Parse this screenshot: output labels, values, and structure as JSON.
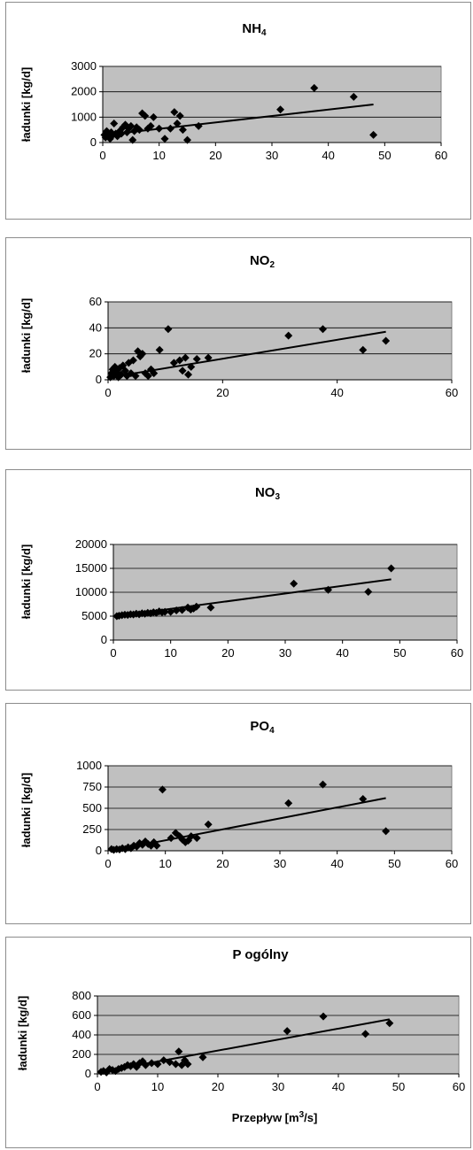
{
  "chart_data": [
    {
      "type": "scatter",
      "title_base": "NH",
      "title_sub": "4",
      "ylabel": "ładunki [kg/d]",
      "xlabel": "",
      "xlim": [
        0,
        60
      ],
      "ylim": [
        0,
        3000
      ],
      "x_ticks": [
        0,
        10,
        20,
        30,
        40,
        50,
        60
      ],
      "y_ticks": [
        0,
        1000,
        2000,
        3000
      ],
      "grid": true,
      "plot_color": "#c0c0c0",
      "marker_color": "#000000",
      "points": [
        [
          0.3,
          300
        ],
        [
          0.5,
          200
        ],
        [
          0.7,
          450
        ],
        [
          0.9,
          250
        ],
        [
          1.1,
          350
        ],
        [
          1.3,
          150
        ],
        [
          1.5,
          400
        ],
        [
          1.8,
          300
        ],
        [
          2,
          750
        ],
        [
          2.3,
          350
        ],
        [
          2.6,
          250
        ],
        [
          3,
          450
        ],
        [
          3.3,
          350
        ],
        [
          3.6,
          600
        ],
        [
          4,
          700
        ],
        [
          4.3,
          400
        ],
        [
          4.6,
          550
        ],
        [
          5,
          650
        ],
        [
          5.3,
          100
        ],
        [
          5.6,
          450
        ],
        [
          6,
          600
        ],
        [
          6.5,
          500
        ],
        [
          7,
          1150
        ],
        [
          7.5,
          1050
        ],
        [
          8,
          550
        ],
        [
          8.5,
          650
        ],
        [
          9,
          1000
        ],
        [
          10,
          550
        ],
        [
          11,
          150
        ],
        [
          12,
          550
        ],
        [
          12.7,
          1200
        ],
        [
          13.2,
          750
        ],
        [
          13.7,
          1050
        ],
        [
          14.2,
          500
        ],
        [
          15,
          100
        ],
        [
          17,
          650
        ],
        [
          31.5,
          1300
        ],
        [
          37.5,
          2150
        ],
        [
          44.5,
          1800
        ],
        [
          48,
          300
        ]
      ],
      "trendline": {
        "x": [
          0.5,
          48
        ],
        "y": [
          300,
          1500
        ]
      }
    },
    {
      "type": "scatter",
      "title_base": "NO",
      "title_sub": "2",
      "ylabel": "ładunki [kg/d]",
      "xlabel": "",
      "xlim": [
        0,
        60
      ],
      "ylim": [
        0,
        60
      ],
      "x_ticks": [
        0,
        20,
        40,
        60
      ],
      "y_ticks": [
        0,
        20,
        40,
        60
      ],
      "grid": true,
      "plot_color": "#c0c0c0",
      "marker_color": "#000000",
      "points": [
        [
          0.4,
          2
        ],
        [
          0.6,
          5
        ],
        [
          0.8,
          8
        ],
        [
          1,
          3
        ],
        [
          1.2,
          10
        ],
        [
          1.5,
          6
        ],
        [
          1.8,
          2
        ],
        [
          2,
          9
        ],
        [
          2.3,
          4
        ],
        [
          2.6,
          11
        ],
        [
          3,
          7
        ],
        [
          3.3,
          3
        ],
        [
          3.6,
          13
        ],
        [
          4,
          5
        ],
        [
          4.4,
          15
        ],
        [
          4.8,
          3
        ],
        [
          5.2,
          22
        ],
        [
          5.6,
          18
        ],
        [
          6,
          20
        ],
        [
          6.5,
          5
        ],
        [
          7,
          3
        ],
        [
          7.5,
          8
        ],
        [
          8,
          5
        ],
        [
          9,
          23
        ],
        [
          10.5,
          39
        ],
        [
          11.5,
          13
        ],
        [
          12.5,
          15
        ],
        [
          13,
          7
        ],
        [
          13.5,
          17
        ],
        [
          14,
          4
        ],
        [
          14.5,
          10
        ],
        [
          15.5,
          16
        ],
        [
          17.5,
          17
        ],
        [
          31.5,
          34
        ],
        [
          37.5,
          39
        ],
        [
          44.5,
          23
        ],
        [
          48.5,
          30
        ]
      ],
      "trendline": {
        "x": [
          0.5,
          48.5
        ],
        "y": [
          2,
          37
        ]
      }
    },
    {
      "type": "scatter",
      "title_base": "NO",
      "title_sub": "3",
      "ylabel": "ładunki [kg/d]",
      "xlabel": "",
      "xlim": [
        0,
        60
      ],
      "ylim": [
        0,
        20000
      ],
      "x_ticks": [
        0,
        10,
        20,
        30,
        40,
        50,
        60
      ],
      "y_ticks": [
        0,
        5000,
        10000,
        15000,
        20000
      ],
      "grid": true,
      "plot_color": "#c0c0c0",
      "marker_color": "#000000",
      "points": [
        [
          0.6,
          5000
        ],
        [
          1,
          5100
        ],
        [
          1.5,
          5200
        ],
        [
          2,
          5300
        ],
        [
          2.5,
          5250
        ],
        [
          3,
          5400
        ],
        [
          3.5,
          5350
        ],
        [
          4,
          5500
        ],
        [
          4.5,
          5400
        ],
        [
          5,
          5600
        ],
        [
          5.5,
          5500
        ],
        [
          6,
          5700
        ],
        [
          6.5,
          5600
        ],
        [
          7,
          5800
        ],
        [
          7.5,
          5700
        ],
        [
          8,
          6000
        ],
        [
          8.5,
          5800
        ],
        [
          9,
          5900
        ],
        [
          10,
          5900
        ],
        [
          11,
          6200
        ],
        [
          12,
          6300
        ],
        [
          13,
          6800
        ],
        [
          13.5,
          6400
        ],
        [
          14,
          6600
        ],
        [
          14.5,
          7000
        ],
        [
          17,
          6800
        ],
        [
          31.5,
          11800
        ],
        [
          37.5,
          10500
        ],
        [
          44.5,
          10100
        ],
        [
          48.5,
          15000
        ]
      ],
      "trendline": {
        "x": [
          0.5,
          48.5
        ],
        "y": [
          5000,
          12700
        ]
      }
    },
    {
      "type": "scatter",
      "title_base": "PO",
      "title_sub": "4",
      "ylabel": "ładunki [kg/d]",
      "xlabel": "",
      "xlim": [
        0,
        60
      ],
      "ylim": [
        0,
        1000
      ],
      "x_ticks": [
        0,
        10,
        20,
        30,
        40,
        50,
        60
      ],
      "y_ticks": [
        0,
        250,
        500,
        750,
        1000
      ],
      "grid": true,
      "plot_color": "#c0c0c0",
      "marker_color": "#000000",
      "points": [
        [
          0.6,
          20
        ],
        [
          1,
          10
        ],
        [
          1.5,
          20
        ],
        [
          2,
          15
        ],
        [
          2.5,
          30
        ],
        [
          3,
          20
        ],
        [
          3.5,
          40
        ],
        [
          4,
          30
        ],
        [
          4.5,
          60
        ],
        [
          5,
          50
        ],
        [
          5.5,
          90
        ],
        [
          6,
          70
        ],
        [
          6.5,
          110
        ],
        [
          7,
          80
        ],
        [
          7.5,
          60
        ],
        [
          8,
          100
        ],
        [
          8.5,
          60
        ],
        [
          9.5,
          720
        ],
        [
          11,
          150
        ],
        [
          11.8,
          210
        ],
        [
          12.5,
          170
        ],
        [
          13,
          130
        ],
        [
          13.5,
          100
        ],
        [
          14,
          120
        ],
        [
          14.5,
          170
        ],
        [
          15.5,
          150
        ],
        [
          17.5,
          310
        ],
        [
          31.5,
          560
        ],
        [
          37.5,
          780
        ],
        [
          44.5,
          610
        ],
        [
          48.5,
          230
        ]
      ],
      "trendline": {
        "x": [
          0.5,
          48.5
        ],
        "y": [
          0,
          620
        ]
      }
    },
    {
      "type": "scatter",
      "title_base": "P ogólny",
      "title_sub": "",
      "ylabel": "ładunki [kg/d]",
      "xlabel_base": "Przepływ [m",
      "xlabel_sup": "3",
      "xlabel_end": "/s]",
      "xlim": [
        0,
        60
      ],
      "ylim": [
        0,
        800
      ],
      "x_ticks": [
        0,
        10,
        20,
        30,
        40,
        50,
        60
      ],
      "y_ticks": [
        0,
        200,
        400,
        600,
        800
      ],
      "grid": true,
      "plot_color": "#c0c0c0",
      "marker_color": "#000000",
      "points": [
        [
          0.6,
          20
        ],
        [
          1,
          30
        ],
        [
          1.5,
          15
        ],
        [
          2,
          50
        ],
        [
          2.5,
          40
        ],
        [
          3,
          30
        ],
        [
          3.5,
          50
        ],
        [
          4,
          60
        ],
        [
          4.5,
          70
        ],
        [
          5,
          90
        ],
        [
          5.5,
          80
        ],
        [
          6,
          100
        ],
        [
          6.5,
          70
        ],
        [
          7,
          110
        ],
        [
          7.5,
          130
        ],
        [
          8,
          90
        ],
        [
          9,
          110
        ],
        [
          10,
          100
        ],
        [
          11,
          140
        ],
        [
          12,
          120
        ],
        [
          13,
          100
        ],
        [
          13.5,
          230
        ],
        [
          14,
          90
        ],
        [
          14.5,
          140
        ],
        [
          15,
          100
        ],
        [
          17.5,
          170
        ],
        [
          31.5,
          440
        ],
        [
          37.5,
          590
        ],
        [
          44.5,
          410
        ],
        [
          48.5,
          520
        ]
      ],
      "trendline": {
        "x": [
          0.5,
          48.5
        ],
        "y": [
          20,
          560
        ]
      }
    }
  ]
}
